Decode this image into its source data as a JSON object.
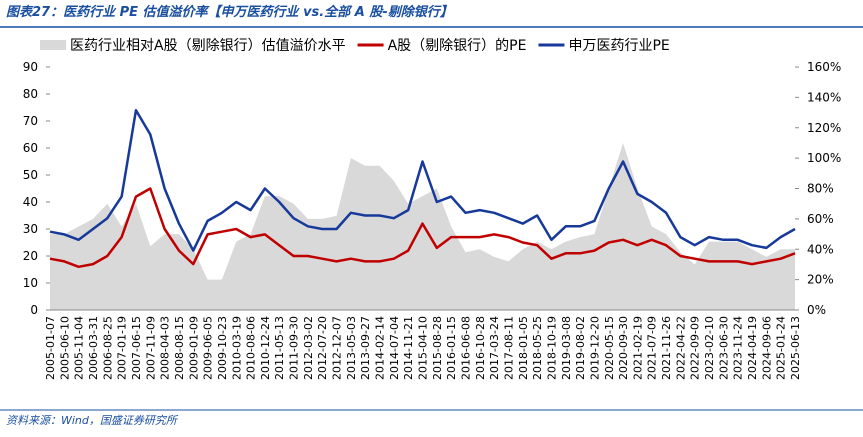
{
  "chart_data": {
    "type": "line",
    "title": "图表27：医药行业 PE 估值溢价率【申万医药行业 vs.全部 A 股-剔除银行】",
    "source": "资料来源：Wind，国盛证券研究所",
    "categories": [
      "2005-01-07",
      "2005-06-10",
      "2005-11-04",
      "2006-03-31",
      "2006-08-25",
      "2007-01-19",
      "2007-06-15",
      "2007-11-09",
      "2008-04-03",
      "2008-08-15",
      "2009-01-09",
      "2009-06-05",
      "2009-10-23",
      "2010-03-19",
      "2010-08-06",
      "2010-12-24",
      "2011-05-13",
      "2011-09-30",
      "2012-03-02",
      "2012-07-20",
      "2012-12-07",
      "2013-05-03",
      "2013-09-27",
      "2014-02-14",
      "2014-07-04",
      "2014-11-21",
      "2015-04-10",
      "2015-08-28",
      "2016-01-15",
      "2016-06-08",
      "2016-10-28",
      "2017-03-24",
      "2017-08-11",
      "2018-01-05",
      "2018-05-25",
      "2018-10-19",
      "2019-03-08",
      "2019-08-02",
      "2019-12-20",
      "2020-05-15",
      "2020-09-30",
      "2021-02-19",
      "2021-07-09",
      "2021-11-26",
      "2022-04-22",
      "2022-09-09",
      "2023-02-10",
      "2023-06-30",
      "2023-11-24",
      "2024-04-19",
      "2024-09-06",
      "2025-01-24",
      "2025-06-13"
    ],
    "series": [
      {
        "name": "医药行业相对A股（剔除银行）估值溢价水平",
        "color": "#d9d9d9",
        "axis": "y2",
        "kind": "area",
        "values": [
          50,
          50,
          55,
          60,
          70,
          55,
          70,
          42,
          50,
          50,
          40,
          20,
          20,
          45,
          50,
          75,
          75,
          70,
          60,
          60,
          62,
          100,
          95,
          95,
          85,
          70,
          75,
          80,
          55,
          38,
          40,
          35,
          32,
          40,
          45,
          40,
          45,
          48,
          50,
          80,
          110,
          80,
          55,
          50,
          38,
          30,
          45,
          45,
          45,
          40,
          35,
          40,
          40
        ]
      },
      {
        "name": "A股（剔除银行）的PE",
        "color": "#c00000",
        "values": [
          19,
          18,
          16,
          17,
          20,
          27,
          42,
          45,
          30,
          22,
          17,
          28,
          29,
          30,
          27,
          28,
          24,
          20,
          20,
          19,
          18,
          19,
          18,
          18,
          19,
          22,
          32,
          23,
          27,
          27,
          27,
          28,
          27,
          25,
          24,
          19,
          21,
          21,
          22,
          25,
          26,
          24,
          26,
          24,
          20,
          19,
          18,
          18,
          18,
          17,
          18,
          19,
          21
        ]
      },
      {
        "name": "申万医药行业PE",
        "color": "#17399a",
        "values": [
          29,
          28,
          26,
          30,
          34,
          42,
          74,
          65,
          45,
          32,
          22,
          33,
          36,
          40,
          37,
          45,
          40,
          34,
          31,
          30,
          30,
          36,
          35,
          35,
          34,
          37,
          55,
          40,
          42,
          36,
          37,
          36,
          34,
          32,
          35,
          26,
          31,
          31,
          33,
          45,
          55,
          43,
          40,
          36,
          27,
          24,
          27,
          26,
          26,
          24,
          23,
          27,
          30
        ]
      }
    ],
    "ylim": [
      0,
      90
    ],
    "yticks": [
      0,
      10,
      20,
      30,
      40,
      50,
      60,
      70,
      80,
      90
    ],
    "y2lim": [
      0,
      160
    ],
    "y2ticks": [
      {
        "value": 0,
        "label": "0%"
      },
      {
        "value": 20,
        "label": "20%"
      },
      {
        "value": 40,
        "label": "40%"
      },
      {
        "value": 60,
        "label": "60%"
      },
      {
        "value": 80,
        "label": "80%"
      },
      {
        "value": 100,
        "label": "100%"
      },
      {
        "value": 120,
        "label": "120%"
      },
      {
        "value": 140,
        "label": "140%"
      },
      {
        "value": 160,
        "label": "160%"
      }
    ]
  }
}
